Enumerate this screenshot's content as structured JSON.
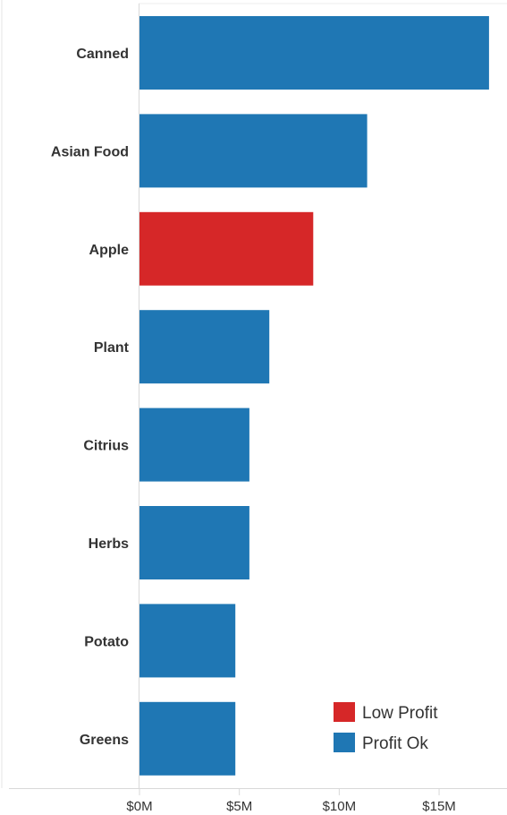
{
  "chart_data": {
    "type": "bar",
    "orientation": "horizontal",
    "categories": [
      "Canned",
      "Asian Food",
      "Apple",
      "Plant",
      "Citrius",
      "Herbs",
      "Potato",
      "Greens"
    ],
    "values": [
      17.5,
      11.4,
      8.7,
      6.5,
      5.5,
      5.5,
      4.8,
      4.8
    ],
    "value_unit": "$M",
    "status": [
      "Profit Ok",
      "Profit Ok",
      "Low Profit",
      "Profit Ok",
      "Profit Ok",
      "Profit Ok",
      "Profit Ok",
      "Profit Ok"
    ],
    "x_ticks": [
      0,
      5,
      10,
      15
    ],
    "x_tick_labels": [
      "$0M",
      "$5M",
      "$10M",
      "$15M"
    ],
    "xlim": [
      0,
      18.4
    ],
    "title": "",
    "xlabel": "",
    "ylabel": "",
    "grid": false,
    "legend": {
      "placement": "bottom-right",
      "entries": [
        {
          "label": "Low Profit",
          "color": "#d62728"
        },
        {
          "label": "Profit Ok",
          "color": "#1f77b4"
        }
      ]
    }
  },
  "colors": {
    "low_profit": "#d62728",
    "profit_ok": "#1f77b4",
    "axis": "#d9d9d9",
    "text": "#333333"
  }
}
